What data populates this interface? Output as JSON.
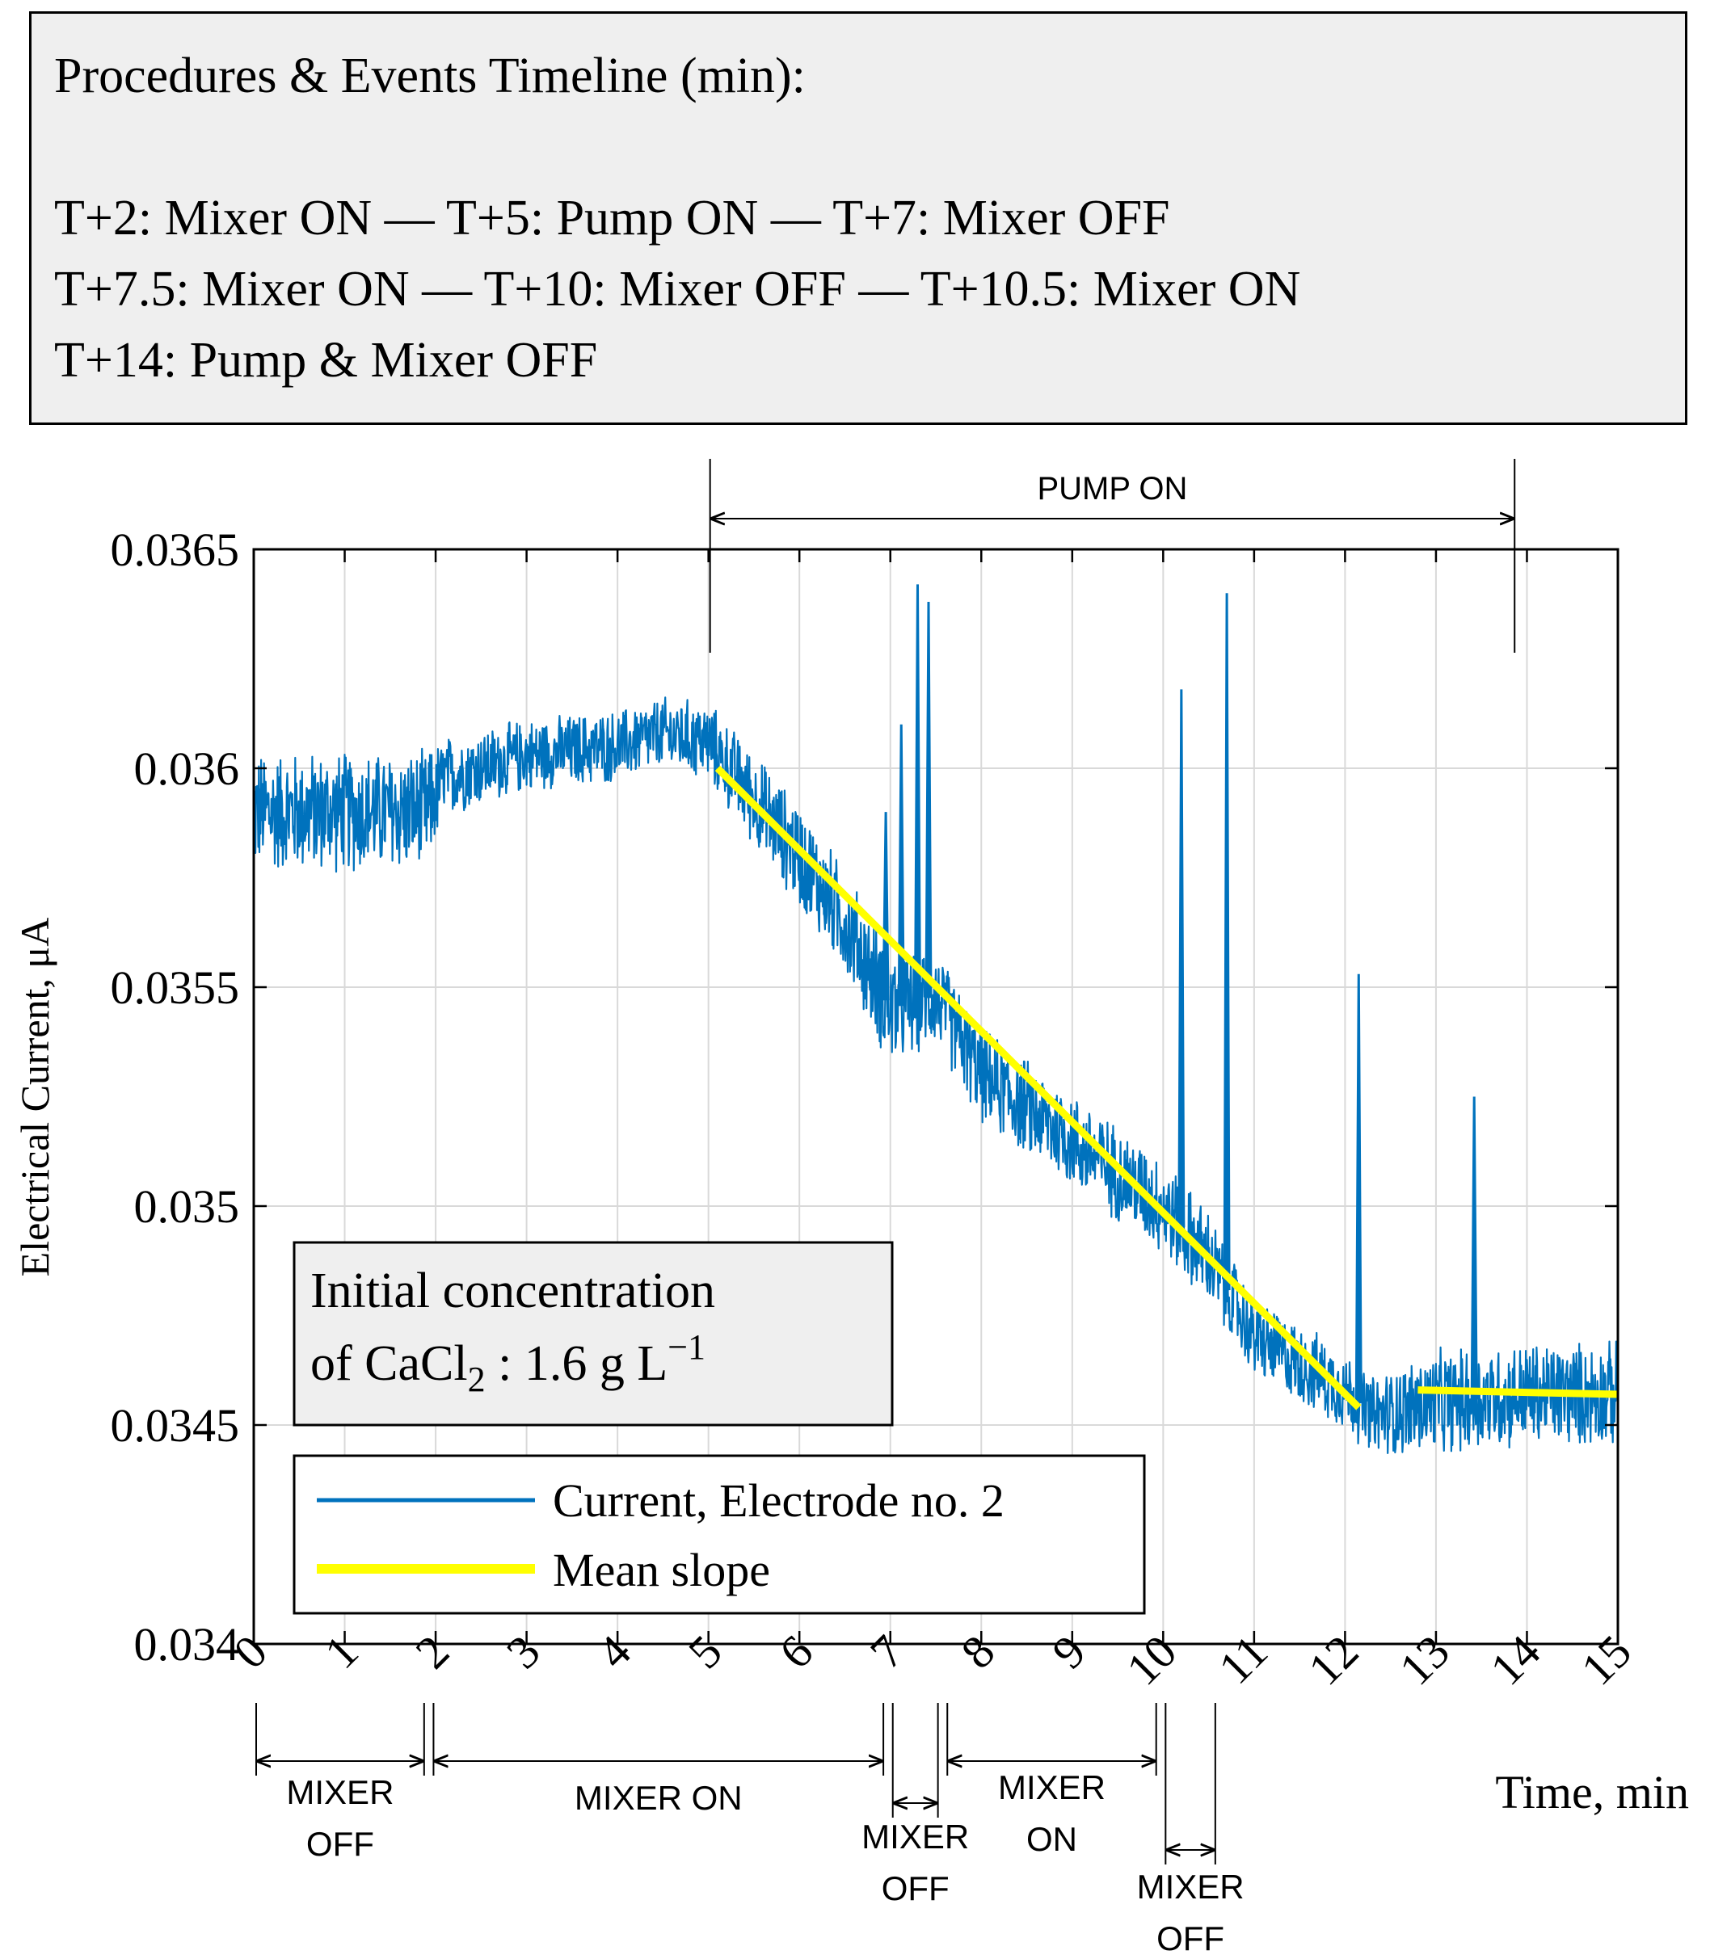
{
  "timeline": {
    "title": "Procedures & Events Timeline (min):",
    "lines": [
      "T+2: Mixer ON  —  T+5: Pump ON  —  T+7: Mixer OFF",
      "T+7.5: Mixer ON  —  T+10: Mixer OFF  —  T+10.5: Mixer ON",
      "T+14: Pump & Mixer OFF"
    ]
  },
  "colors": {
    "current": "#0072BD",
    "slope": "#FFFF00",
    "grid": "#d9d9d9",
    "box_bg": "#efefef"
  },
  "chart_data": {
    "type": "line",
    "xlabel": "Time, min",
    "ylabel": "Electrical Current, μA",
    "xlim": [
      0,
      15
    ],
    "ylim": [
      0.034,
      0.0365
    ],
    "xticks": [
      0,
      1,
      2,
      3,
      4,
      5,
      6,
      7,
      8,
      9,
      10,
      11,
      12,
      13,
      14,
      15
    ],
    "yticks": [
      0.034,
      0.0345,
      0.035,
      0.0355,
      0.036,
      0.0365
    ],
    "ytick_labels": [
      "0.034",
      "0.0345",
      "0.035",
      "0.0355",
      "0.036",
      "0.0365"
    ],
    "grid": true,
    "legend_placement": "bottom-left",
    "series": [
      {
        "name": "Current, Electrode no. 2",
        "kind": "noisy-trace",
        "x": [
          0,
          1,
          1.9,
          2.1,
          3,
          4,
          4.5,
          5,
          6,
          6.5,
          7,
          7.5,
          8,
          9,
          10,
          10.5,
          11,
          12,
          12.3,
          13,
          14,
          15
        ],
        "y": [
          0.0359,
          0.0359,
          0.0359,
          0.03598,
          0.03603,
          0.03605,
          0.03608,
          0.03606,
          0.0358,
          0.03565,
          0.03545,
          0.03548,
          0.0353,
          0.03515,
          0.035,
          0.03488,
          0.0347,
          0.03458,
          0.03452,
          0.03455,
          0.03457,
          0.03457
        ],
        "noise_halfwidth": [
          0.00015,
          0.00015,
          0.00015,
          0.0001,
          9e-05,
          9e-05,
          9e-05,
          0.0001,
          0.00013,
          0.00013,
          0.00015,
          0.00012,
          0.00012,
          0.00012,
          0.00012,
          0.00012,
          0.0001,
          0.0001,
          0.0001,
          0.00013,
          0.00013,
          0.00013
        ],
        "spikes": [
          {
            "x": 6.95,
            "y": 0.0359
          },
          {
            "x": 7.12,
            "y": 0.0361
          },
          {
            "x": 7.3,
            "y": 0.03642
          },
          {
            "x": 7.42,
            "y": 0.03638
          },
          {
            "x": 10.2,
            "y": 0.03618
          },
          {
            "x": 10.7,
            "y": 0.0364
          },
          {
            "x": 12.15,
            "y": 0.03553
          },
          {
            "x": 13.42,
            "y": 0.03525
          }
        ]
      },
      {
        "name": "Mean slope",
        "segments": [
          {
            "x": [
              5.1,
              12.15
            ],
            "y": [
              0.036,
              0.03454
            ]
          },
          {
            "x": [
              12.8,
              15
            ],
            "y": [
              0.03458,
              0.03457
            ]
          }
        ]
      }
    ],
    "annotation_box": {
      "line1": "Initial concentration",
      "line2_prefix": "of CaCl",
      "line2_sub": "2",
      "line2_mid": " : 1.6 g L",
      "line2_sup": "−1"
    },
    "top_annotation": {
      "label": "PUMP ON",
      "from": 5,
      "to": 13.9
    },
    "bottom_annotations": [
      {
        "label_lines": [
          "MIXER",
          "OFF"
        ],
        "from": 0,
        "to": 1.9
      },
      {
        "label_lines": [
          "MIXER ON"
        ],
        "from": 1.95,
        "to": 6.95
      },
      {
        "label_lines": [
          "MIXER",
          "OFF"
        ],
        "from": 7.0,
        "to": 7.55
      },
      {
        "label_lines": [
          "MIXER",
          "ON"
        ],
        "from": 7.6,
        "to": 9.95
      },
      {
        "label_lines": [
          "MIXER",
          "OFF"
        ],
        "from": 10.0,
        "to": 10.6
      }
    ]
  }
}
